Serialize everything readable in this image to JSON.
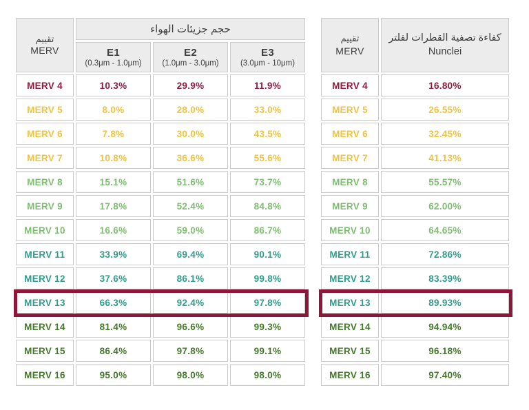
{
  "colors": {
    "header_bg": "#ececec",
    "header_text": "#3e3e3e",
    "cell_border": "#cbcbcb",
    "highlight_border": "#8e1638",
    "tier_maroon": "#8e1b3d",
    "tier_gold": "#efc23f",
    "tier_light_green": "#7dbe70",
    "tier_teal": "#2f9c8d",
    "tier_dark_green": "#44782a"
  },
  "left_table": {
    "merv_header": {
      "line1": "تقييم",
      "line2": "MERV"
    },
    "group_header": "حجم جزيئات الهواء",
    "columns": [
      {
        "label": "E1",
        "range": "(0.3μm - 1.0μm)"
      },
      {
        "label": "E2",
        "range": "(1.0μm - 3.0μm)"
      },
      {
        "label": "E3",
        "range": "(3.0μm - 10μm)"
      }
    ],
    "rows": [
      {
        "label": "MERV 4",
        "tier": "tier_maroon",
        "values": [
          "10.3%",
          "29.9%",
          "11.9%"
        ],
        "highlight": false
      },
      {
        "label": "MERV 5",
        "tier": "tier_gold",
        "values": [
          "8.0%",
          "28.0%",
          "33.0%"
        ],
        "highlight": false
      },
      {
        "label": "MERV 6",
        "tier": "tier_gold",
        "values": [
          "7.8%",
          "30.0%",
          "43.5%"
        ],
        "highlight": false
      },
      {
        "label": "MERV 7",
        "tier": "tier_gold",
        "values": [
          "10.8%",
          "36.6%",
          "55.6%"
        ],
        "highlight": false
      },
      {
        "label": "MERV 8",
        "tier": "tier_light_green",
        "values": [
          "15.1%",
          "51.6%",
          "73.7%"
        ],
        "highlight": false
      },
      {
        "label": "MERV 9",
        "tier": "tier_light_green",
        "values": [
          "17.8%",
          "52.4%",
          "84.8%"
        ],
        "highlight": false
      },
      {
        "label": "MERV 10",
        "tier": "tier_light_green",
        "values": [
          "16.6%",
          "59.0%",
          "86.7%"
        ],
        "highlight": false
      },
      {
        "label": "MERV 11",
        "tier": "tier_teal",
        "values": [
          "33.9%",
          "69.4%",
          "90.1%"
        ],
        "highlight": false
      },
      {
        "label": "MERV 12",
        "tier": "tier_teal",
        "values": [
          "37.6%",
          "86.1%",
          "99.8%"
        ],
        "highlight": false
      },
      {
        "label": "MERV 13",
        "tier": "tier_teal",
        "values": [
          "66.3%",
          "92.4%",
          "97.8%"
        ],
        "highlight": true
      },
      {
        "label": "MERV 14",
        "tier": "tier_dark_green",
        "values": [
          "81.4%",
          "96.6%",
          "99.3%"
        ],
        "highlight": false
      },
      {
        "label": "MERV 15",
        "tier": "tier_dark_green",
        "values": [
          "86.4%",
          "97.8%",
          "99.1%"
        ],
        "highlight": false
      },
      {
        "label": "MERV 16",
        "tier": "tier_dark_green",
        "values": [
          "95.0%",
          "98.0%",
          "98.0%"
        ],
        "highlight": false
      }
    ]
  },
  "right_table": {
    "merv_header": {
      "line1": "تقييم",
      "line2": "MERV"
    },
    "value_header": {
      "line1": "كفاءة تصفية القطرات لفلتر",
      "line2": "Nunclei"
    },
    "rows": [
      {
        "label": "MERV 4",
        "tier": "tier_maroon",
        "values": [
          "16.80%"
        ],
        "highlight": false
      },
      {
        "label": "MERV 5",
        "tier": "tier_gold",
        "values": [
          "26.55%"
        ],
        "highlight": false
      },
      {
        "label": "MERV 6",
        "tier": "tier_gold",
        "values": [
          "32.45%"
        ],
        "highlight": false
      },
      {
        "label": "MERV 7",
        "tier": "tier_gold",
        "values": [
          "41.13%"
        ],
        "highlight": false
      },
      {
        "label": "MERV 8",
        "tier": "tier_light_green",
        "values": [
          "55.57%"
        ],
        "highlight": false
      },
      {
        "label": "MERV 9",
        "tier": "tier_light_green",
        "values": [
          "62.00%"
        ],
        "highlight": false
      },
      {
        "label": "MERV 10",
        "tier": "tier_light_green",
        "values": [
          "64.65%"
        ],
        "highlight": false
      },
      {
        "label": "MERV 11",
        "tier": "tier_teal",
        "values": [
          "72.86%"
        ],
        "highlight": false
      },
      {
        "label": "MERV 12",
        "tier": "tier_teal",
        "values": [
          "83.39%"
        ],
        "highlight": false
      },
      {
        "label": "MERV 13",
        "tier": "tier_teal",
        "values": [
          "89.93%"
        ],
        "highlight": true
      },
      {
        "label": "MERV 14",
        "tier": "tier_dark_green",
        "values": [
          "94.94%"
        ],
        "highlight": false
      },
      {
        "label": "MERV 15",
        "tier": "tier_dark_green",
        "values": [
          "96.18%"
        ],
        "highlight": false
      },
      {
        "label": "MERV 16",
        "tier": "tier_dark_green",
        "values": [
          "97.40%"
        ],
        "highlight": false
      }
    ]
  }
}
